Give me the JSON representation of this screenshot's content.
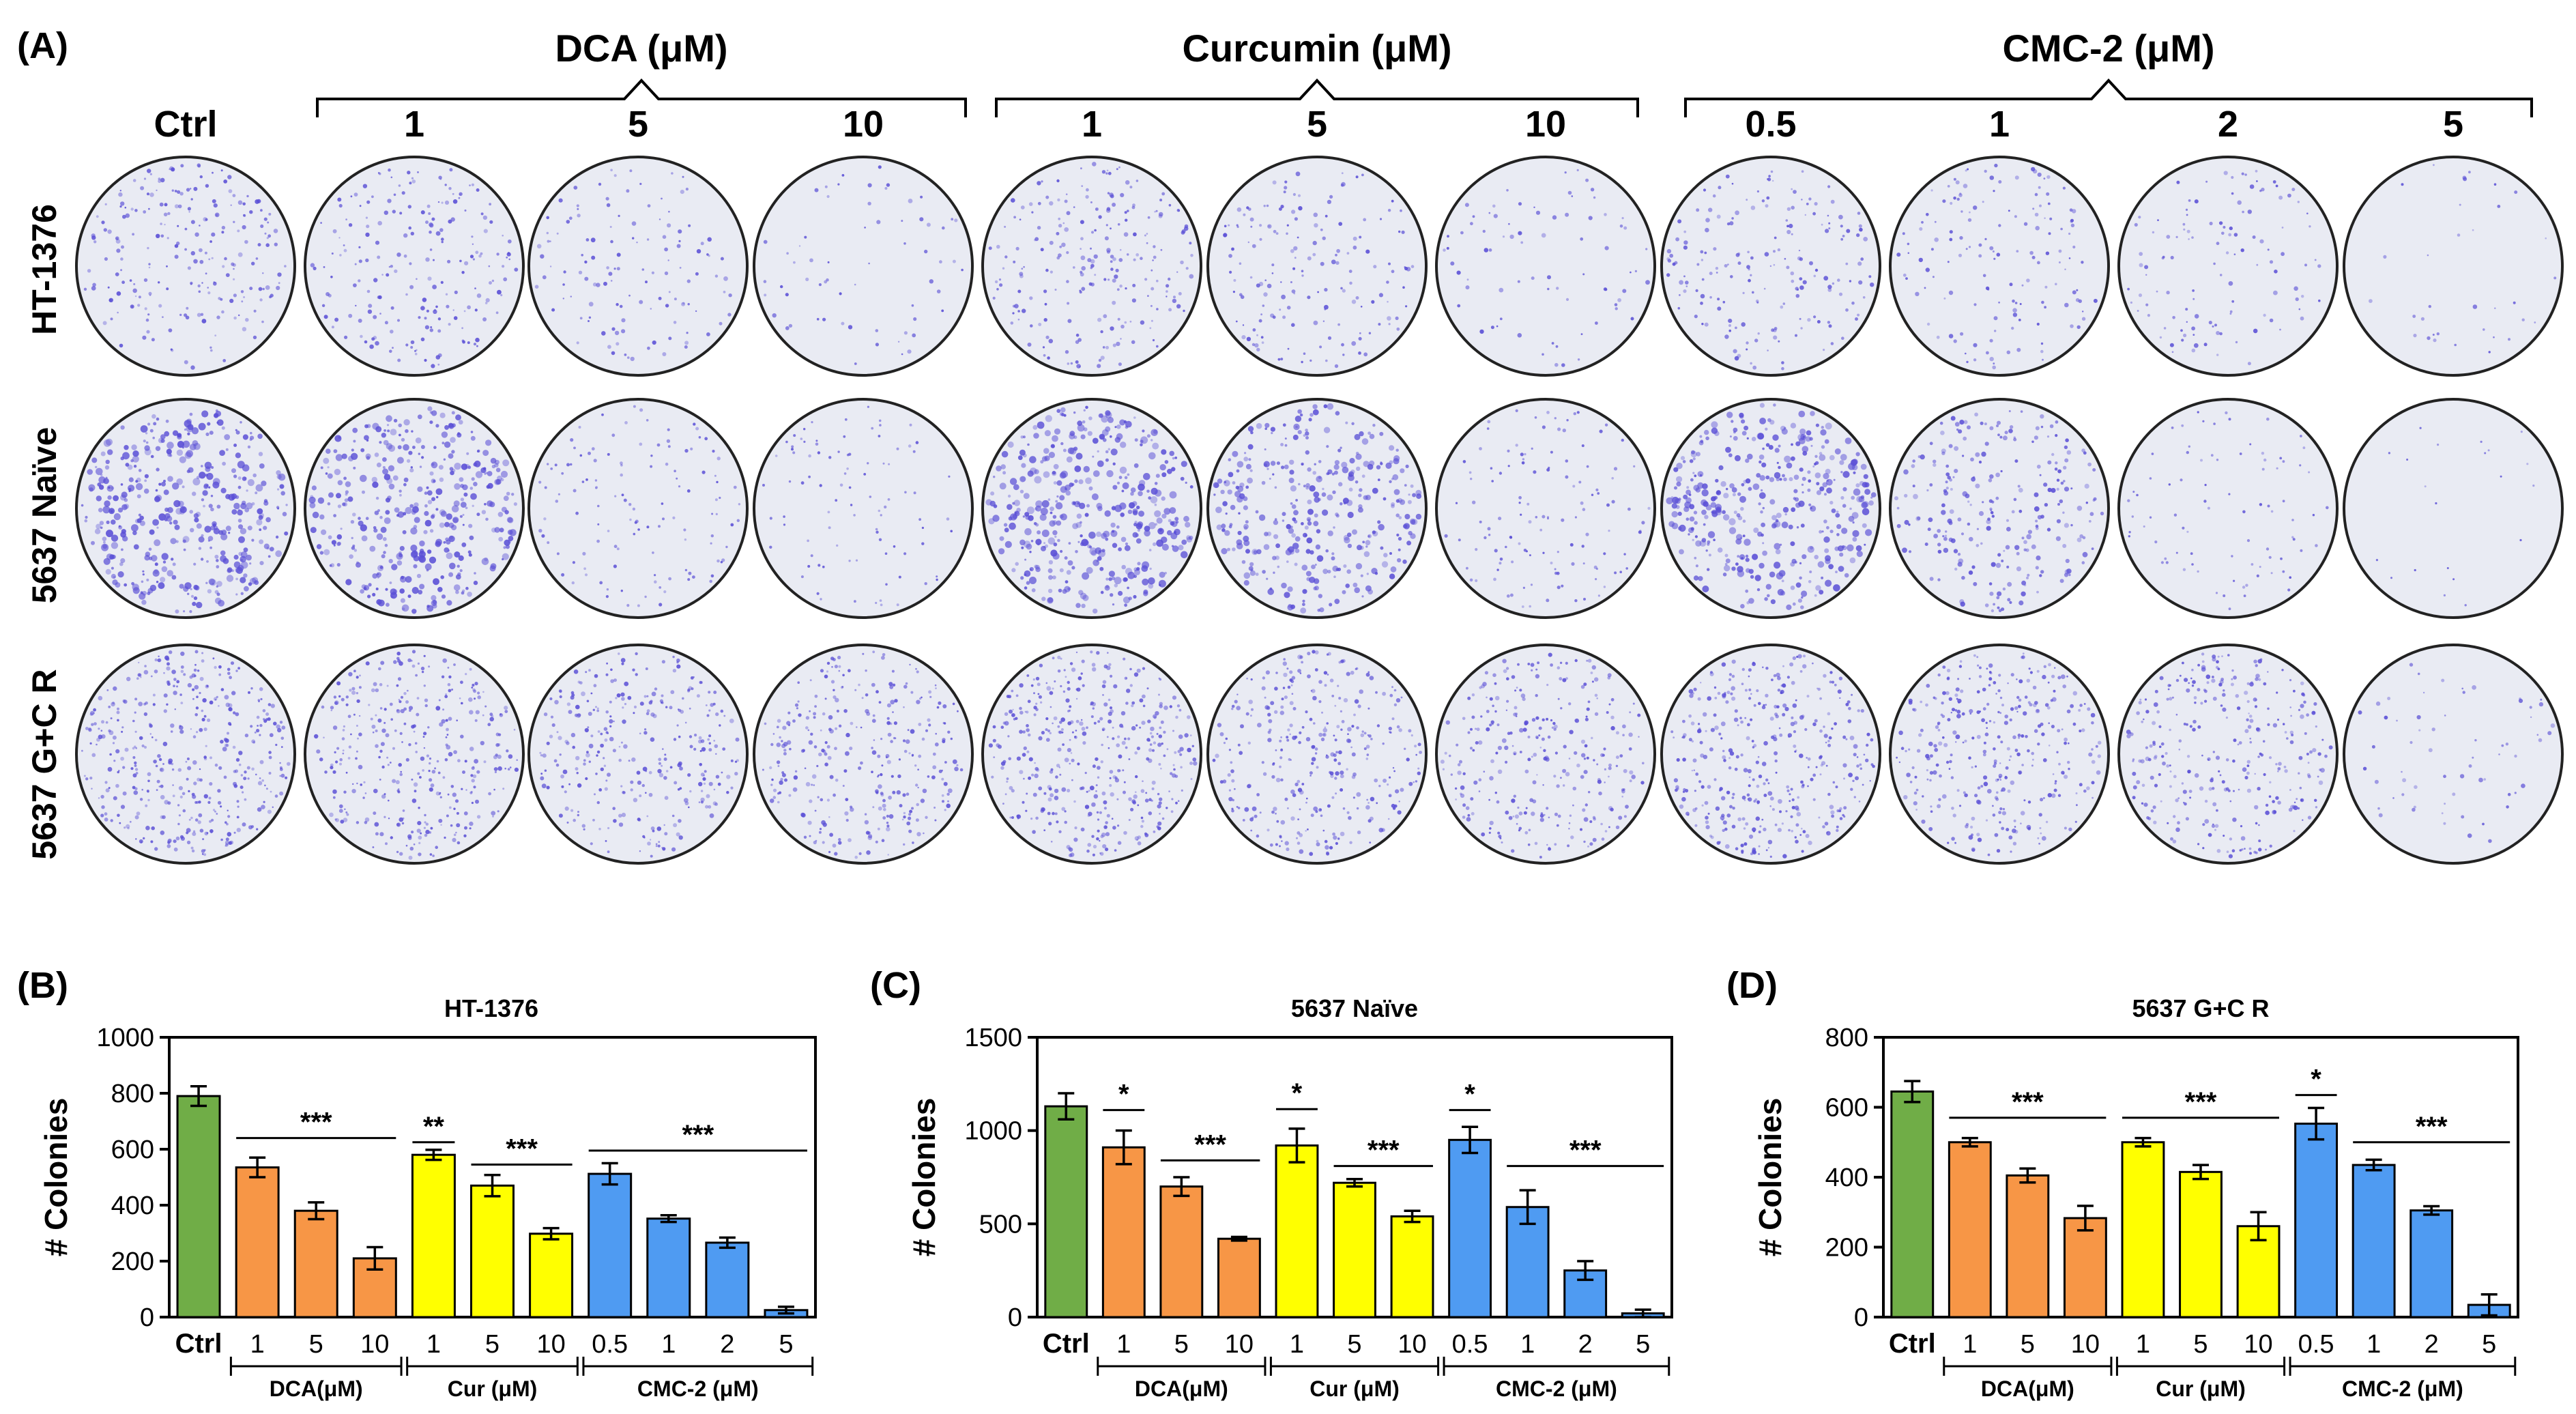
{
  "figure": {
    "panel_a": {
      "label": "(A)",
      "ctrl_label": "Ctrl",
      "groups": [
        {
          "title": "DCA (μM)",
          "doses": [
            "1",
            "5",
            "10"
          ]
        },
        {
          "title": "Curcumin (μM)",
          "doses": [
            "1",
            "5",
            "10"
          ]
        },
        {
          "title": "CMC-2 (μM)",
          "doses": [
            "0.5",
            "1",
            "2",
            "5"
          ]
        }
      ],
      "rows": [
        "HT-1376",
        "5637 Naïve",
        "5637 G+C R"
      ],
      "colony_density": [
        [
          0.55,
          0.5,
          0.3,
          0.15,
          0.55,
          0.4,
          0.18,
          0.45,
          0.35,
          0.28,
          0.08
        ],
        [
          1.0,
          0.95,
          0.3,
          0.22,
          1.0,
          0.85,
          0.3,
          0.95,
          0.6,
          0.2,
          0.05
        ],
        [
          1.0,
          0.85,
          0.75,
          0.75,
          1.0,
          0.8,
          0.7,
          0.9,
          0.8,
          0.75,
          0.15
        ]
      ],
      "colors": {
        "stain": "#5a4fd6",
        "plate": "#e9ebf3",
        "rim": "#222222"
      }
    },
    "shared": {
      "ylabel": "# Colonies",
      "categories": [
        "Ctrl",
        "1",
        "5",
        "10",
        "1",
        "5",
        "10",
        "0.5",
        "1",
        "2",
        "5"
      ],
      "group_labels": [
        "DCA(μM)",
        "Cur (μM)",
        "CMC-2 (μM)"
      ],
      "bar_colors": [
        "#70ad47",
        "#f79646",
        "#f79646",
        "#f79646",
        "#ffff00",
        "#ffff00",
        "#ffff00",
        "#4f9bf2",
        "#4f9bf2",
        "#4f9bf2",
        "#4f9bf2"
      ]
    }
  },
  "chart_data": [
    {
      "type": "bar",
      "panel": "(B)",
      "title": "HT-1376",
      "ylabel": "# Colonies",
      "ylim": [
        0,
        1000
      ],
      "yticks": [
        0,
        200,
        400,
        600,
        800,
        1000
      ],
      "values": [
        790,
        535,
        380,
        210,
        580,
        470,
        298,
        512,
        352,
        266,
        25
      ],
      "errors": [
        35,
        35,
        30,
        40,
        18,
        38,
        20,
        38,
        12,
        18,
        12
      ],
      "significance": [
        {
          "label": "***",
          "from": 1,
          "to": 3,
          "value": 640
        },
        {
          "label": "**",
          "from": 4,
          "to": 4,
          "value": 625
        },
        {
          "label": "***",
          "from": 5,
          "to": 6,
          "value": 545
        },
        {
          "label": "***",
          "from": 7,
          "to": 10,
          "value": 595
        }
      ]
    },
    {
      "type": "bar",
      "panel": "(C)",
      "title": "5637 Naïve",
      "ylabel": "# Colonies",
      "ylim": [
        0,
        1500
      ],
      "yticks": [
        0,
        500,
        1000,
        1500
      ],
      "values": [
        1130,
        910,
        700,
        420,
        920,
        720,
        540,
        950,
        590,
        250,
        20
      ],
      "errors": [
        70,
        90,
        50,
        10,
        90,
        20,
        30,
        70,
        90,
        50,
        20
      ],
      "significance": [
        {
          "label": "*",
          "from": 1,
          "to": 1,
          "value": 1110
        },
        {
          "label": "***",
          "from": 2,
          "to": 3,
          "value": 840
        },
        {
          "label": "*",
          "from": 4,
          "to": 4,
          "value": 1115
        },
        {
          "label": "***",
          "from": 5,
          "to": 6,
          "value": 810
        },
        {
          "label": "*",
          "from": 7,
          "to": 7,
          "value": 1110
        },
        {
          "label": "***",
          "from": 8,
          "to": 10,
          "value": 810
        }
      ]
    },
    {
      "type": "bar",
      "panel": "(D)",
      "title": "5637 G+C R",
      "ylabel": "# Colonies",
      "ylim": [
        0,
        800
      ],
      "yticks": [
        0,
        200,
        400,
        600,
        800
      ],
      "values": [
        645,
        500,
        405,
        283,
        500,
        415,
        260,
        553,
        435,
        305,
        35
      ],
      "errors": [
        30,
        12,
        20,
        35,
        12,
        20,
        40,
        45,
        15,
        12,
        30
      ],
      "significance": [
        {
          "label": "***",
          "from": 1,
          "to": 3,
          "value": 570
        },
        {
          "label": "***",
          "from": 4,
          "to": 6,
          "value": 570
        },
        {
          "label": "*",
          "from": 7,
          "to": 7,
          "value": 635
        },
        {
          "label": "***",
          "from": 8,
          "to": 10,
          "value": 500
        }
      ]
    }
  ]
}
